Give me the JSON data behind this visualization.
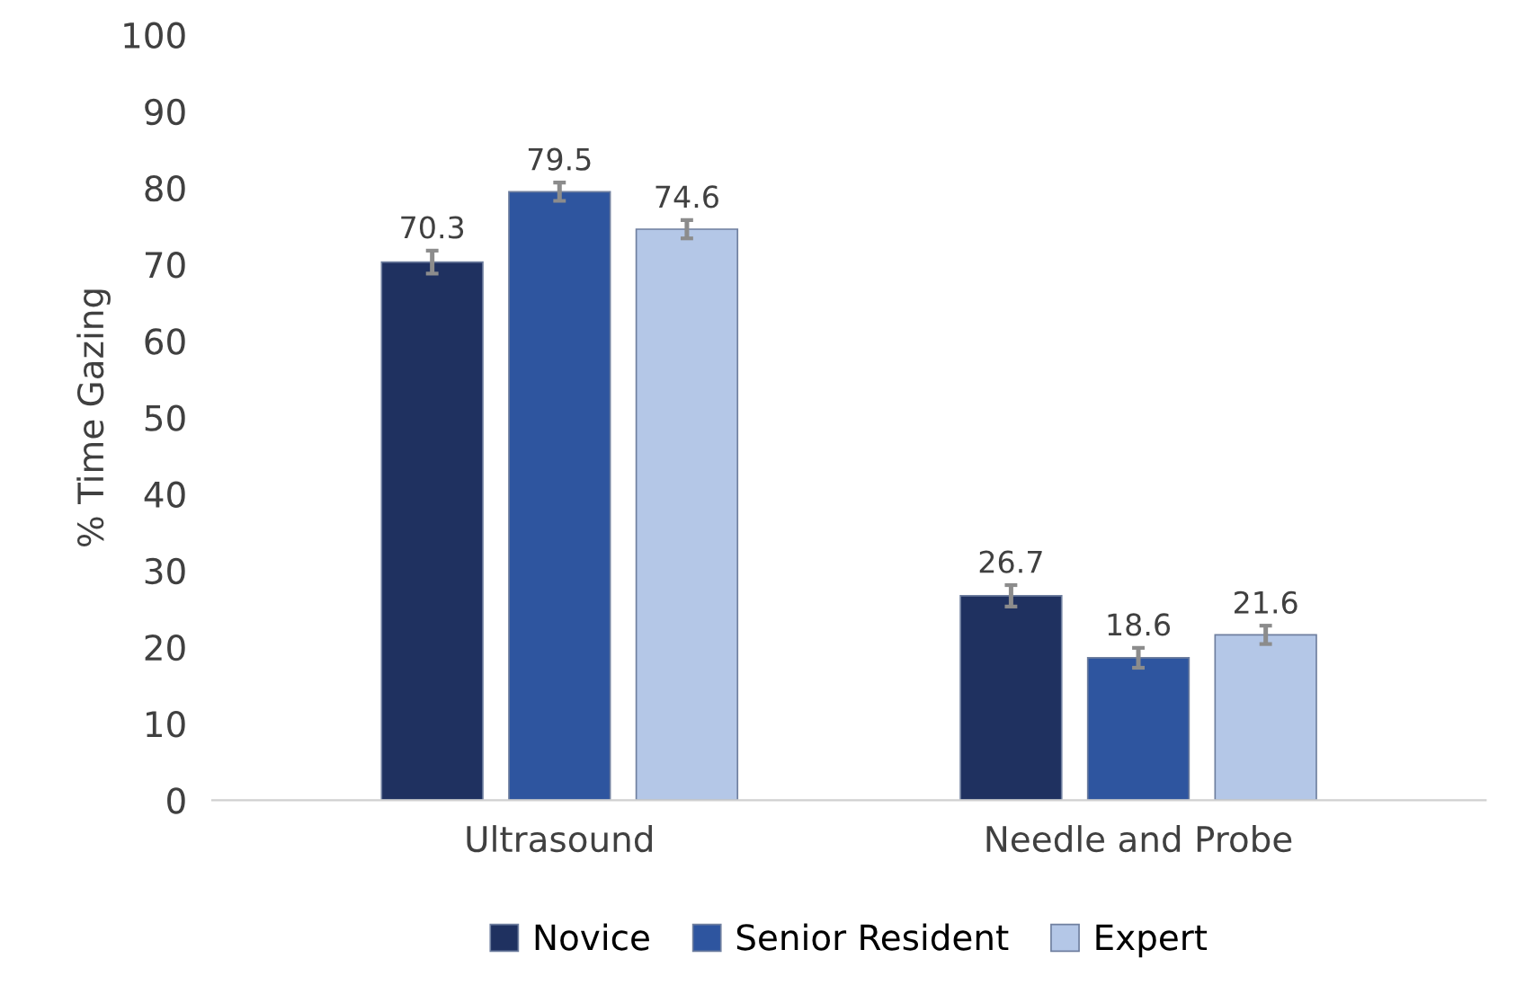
{
  "chart_data": {
    "type": "bar",
    "ylabel": "% Time Gazing",
    "categories": [
      "Ultrasound",
      "Needle and Probe"
    ],
    "series": [
      {
        "name": "Novice",
        "color": "#1f3160",
        "values": [
          70.3,
          26.7
        ],
        "errors": [
          1.5,
          1.4
        ]
      },
      {
        "name": "Senior Resident",
        "color": "#2e559f",
        "values": [
          79.5,
          18.6
        ],
        "errors": [
          1.2,
          1.3
        ]
      },
      {
        "name": "Expert",
        "color": "#b4c7e7",
        "values": [
          74.6,
          21.6
        ],
        "errors": [
          1.2,
          1.2
        ]
      }
    ],
    "ylim": [
      0,
      100
    ],
    "yticks": [
      0,
      10,
      20,
      30,
      40,
      50,
      60,
      70,
      80,
      90,
      100
    ],
    "data_labels": true,
    "grid": false,
    "legend": "bottom"
  }
}
